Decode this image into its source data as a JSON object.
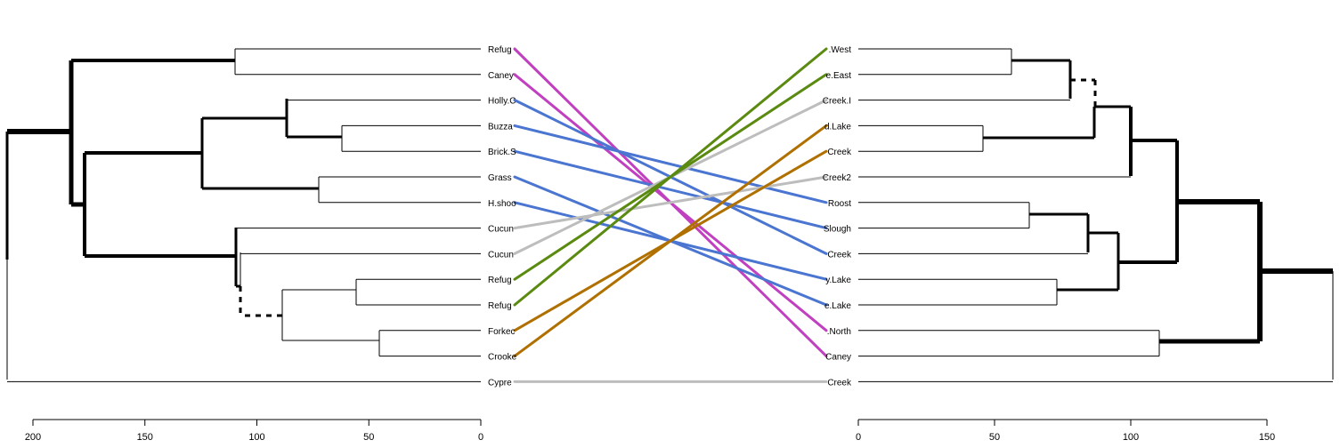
{
  "left_labels": [
    "Refug",
    "Caney",
    "Holly.C",
    "Buzza",
    "Brick.S",
    "Grass",
    "H.shoo",
    "Cucun",
    "Cucun",
    "Refug",
    "Refug",
    "Forkec",
    "Crooke",
    "Cypre"
  ],
  "right_labels": [
    ".West",
    "e.East",
    "Creek.I",
    "d.Lake",
    "Creek",
    "Creek2",
    "Roost",
    "Slough",
    "Creek",
    "y.Lake",
    "e.Lake",
    ".North",
    "Caney",
    "Creek"
  ],
  "left_axis": {
    "ticks": [
      200,
      150,
      100,
      50,
      0
    ]
  },
  "right_axis": {
    "ticks": [
      0,
      50,
      100,
      150
    ]
  },
  "connections": [
    {
      "from": 0,
      "to": 12,
      "color": "#c040c0"
    },
    {
      "from": 1,
      "to": 11,
      "color": "#c040c0"
    },
    {
      "from": 2,
      "to": 8,
      "color": "#4a75d0"
    },
    {
      "from": 3,
      "to": 6,
      "color": "#4a75d0"
    },
    {
      "from": 4,
      "to": 7,
      "color": "#4a75d0"
    },
    {
      "from": 5,
      "to": 10,
      "color": "#4a75d0"
    },
    {
      "from": 6,
      "to": 9,
      "color": "#4a75d0"
    },
    {
      "from": 7,
      "to": 5,
      "color": "#bdbdbd"
    },
    {
      "from": 8,
      "to": 2,
      "color": "#bdbdbd"
    },
    {
      "from": 9,
      "to": 1,
      "color": "#5a8a10"
    },
    {
      "from": 10,
      "to": 0,
      "color": "#5a8a10"
    },
    {
      "from": 11,
      "to": 4,
      "color": "#b07000"
    },
    {
      "from": 12,
      "to": 3,
      "color": "#b07000"
    },
    {
      "from": 13,
      "to": 13,
      "color": "#bdbdbd"
    }
  ]
}
